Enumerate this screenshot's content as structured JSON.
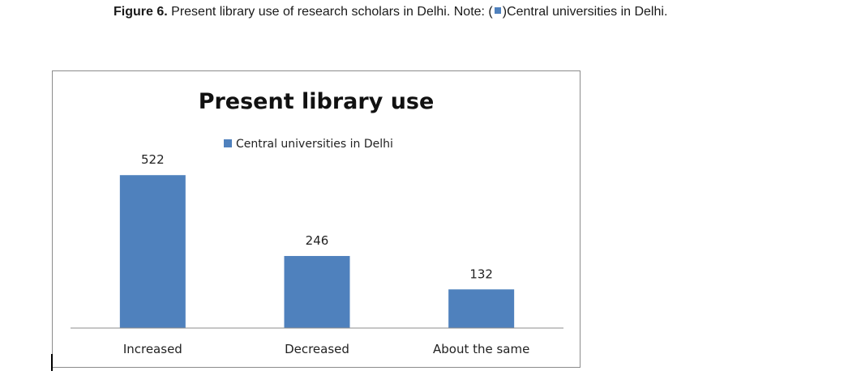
{
  "caption": {
    "label": "Figure 6.",
    "text_before_marker": "Present library use of research scholars in Delhi. Note: (",
    "text_after_marker": ")Central universities in Delhi."
  },
  "colors": {
    "bar": "#4f81bd",
    "axis": "#8c8c8c"
  },
  "chart_data": {
    "type": "bar",
    "title": "Present library use",
    "categories": [
      "Increased",
      "Decreased",
      "About the same"
    ],
    "series": [
      {
        "name": "Central universities in Delhi",
        "values": [
          522,
          246,
          132
        ]
      }
    ],
    "data_labels": [
      "522",
      "246",
      "132"
    ],
    "ylim": [
      0,
      600
    ],
    "grid": false,
    "legend": "top"
  }
}
